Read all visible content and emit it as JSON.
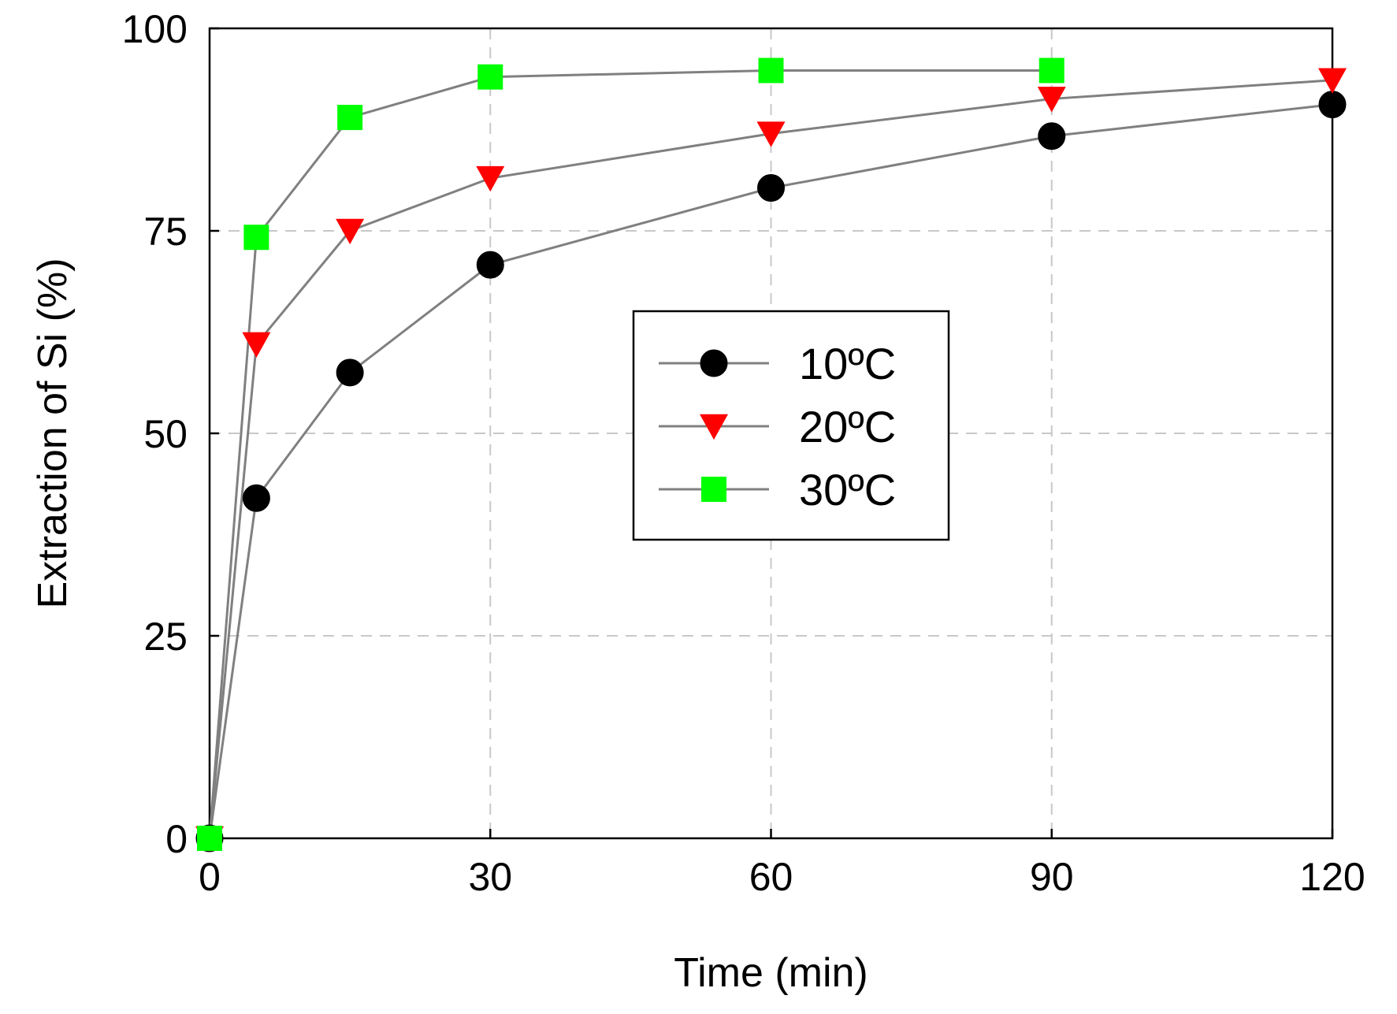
{
  "chart_data": {
    "type": "line",
    "title": "",
    "xlabel": "Time (min)",
    "ylabel": "Extraction of Si (%)",
    "xlim": [
      0,
      120
    ],
    "ylim": [
      0,
      100
    ],
    "xticks": [
      0,
      30,
      60,
      90,
      120
    ],
    "yticks": [
      0,
      25,
      50,
      75,
      100
    ],
    "grid": true,
    "legend_position": "center-right",
    "series": [
      {
        "name": "10ºC",
        "legend_label": "10ºC",
        "marker": "circle",
        "color": "#000000",
        "line_color": "#808080",
        "x": [
          0,
          5,
          15,
          30,
          60,
          90,
          120
        ],
        "y": [
          0,
          42,
          57.5,
          70.8,
          80.3,
          86.7,
          90.6
        ]
      },
      {
        "name": "20ºC",
        "legend_label": "20ºC",
        "marker": "triangle-down",
        "color": "#ff0000",
        "line_color": "#808080",
        "x": [
          0,
          5,
          15,
          30,
          60,
          90,
          120
        ],
        "y": [
          0,
          61,
          75,
          81.5,
          87,
          91.3,
          93.6
        ]
      },
      {
        "name": "30ºC",
        "legend_label": "30ºC",
        "marker": "square",
        "color": "#00ff00",
        "line_color": "#808080",
        "x": [
          0,
          5,
          15,
          30,
          60,
          90
        ],
        "y": [
          0,
          74.2,
          89,
          94,
          94.8,
          94.8
        ]
      }
    ]
  }
}
